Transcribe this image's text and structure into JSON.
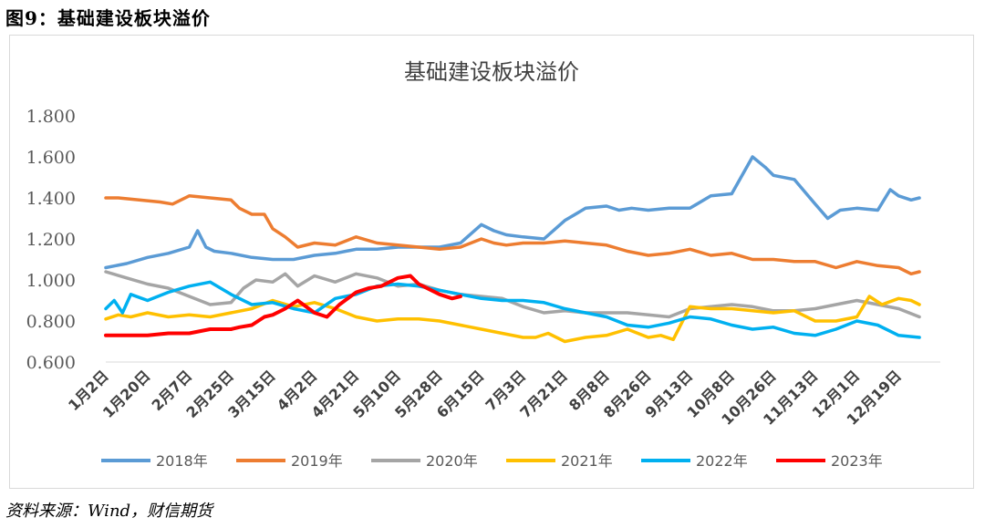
{
  "figure": {
    "caption": "图9：基础建设板块溢价",
    "source": "资料来源：Wind，财信期货"
  },
  "chart_data": {
    "type": "line",
    "title": "基础建设板块溢价",
    "xlabel": "",
    "ylabel": "",
    "ylim": [
      0.6,
      1.8
    ],
    "yticks": [
      "0.600",
      "0.800",
      "1.000",
      "1.200",
      "1.400",
      "1.600",
      "1.800"
    ],
    "ytick_values": [
      0.6,
      0.8,
      1.0,
      1.2,
      1.4,
      1.6,
      1.8
    ],
    "x_categories": [
      "1月2日",
      "1月20日",
      "2月7日",
      "2月25日",
      "3月15日",
      "4月2日",
      "4月21日",
      "5月10日",
      "5月28日",
      "6月15日",
      "7月3日",
      "7月21日",
      "8月8日",
      "8月26日",
      "9月13日",
      "10月8日",
      "10月26日",
      "11月13日",
      "12月1日",
      "12月19日"
    ],
    "x_range": [
      0,
      20
    ],
    "legend_position": "bottom",
    "grid": false,
    "series": [
      {
        "name": "2018年",
        "color": "#5b9bd5",
        "x": [
          0,
          0.5,
          1,
          1.5,
          2,
          2.2,
          2.4,
          2.6,
          3,
          3.5,
          4,
          4.5,
          5,
          5.5,
          6,
          6.5,
          7,
          7.5,
          8,
          8.5,
          9,
          9.3,
          9.6,
          10,
          10.5,
          11,
          11.5,
          12,
          12.3,
          12.6,
          13,
          13.5,
          14,
          14.5,
          15,
          15.5,
          15.8,
          16,
          16.5,
          17,
          17.3,
          17.6,
          18,
          18.5,
          18.8,
          19,
          19.3,
          19.5
        ],
        "values": [
          1.06,
          1.08,
          1.11,
          1.13,
          1.16,
          1.24,
          1.16,
          1.14,
          1.13,
          1.11,
          1.1,
          1.1,
          1.12,
          1.13,
          1.15,
          1.15,
          1.16,
          1.16,
          1.16,
          1.18,
          1.27,
          1.24,
          1.22,
          1.21,
          1.2,
          1.29,
          1.35,
          1.36,
          1.34,
          1.35,
          1.34,
          1.35,
          1.35,
          1.41,
          1.42,
          1.6,
          1.55,
          1.51,
          1.49,
          1.37,
          1.3,
          1.34,
          1.35,
          1.34,
          1.44,
          1.41,
          1.39,
          1.4
        ]
      },
      {
        "name": "2019年",
        "color": "#ed7d31",
        "x": [
          0,
          0.3,
          0.8,
          1.3,
          1.6,
          2,
          2.5,
          3,
          3.2,
          3.5,
          3.8,
          4,
          4.3,
          4.6,
          5,
          5.5,
          6,
          6.5,
          7,
          7.5,
          8,
          8.5,
          9,
          9.3,
          9.6,
          10,
          10.5,
          11,
          11.5,
          12,
          12.5,
          13,
          13.5,
          14,
          14.5,
          15,
          15.5,
          16,
          16.5,
          17,
          17.5,
          18,
          18.5,
          19,
          19.3,
          19.5
        ],
        "values": [
          1.4,
          1.4,
          1.39,
          1.38,
          1.37,
          1.41,
          1.4,
          1.39,
          1.35,
          1.32,
          1.32,
          1.25,
          1.21,
          1.16,
          1.18,
          1.17,
          1.21,
          1.18,
          1.17,
          1.16,
          1.15,
          1.16,
          1.2,
          1.18,
          1.17,
          1.18,
          1.18,
          1.19,
          1.18,
          1.17,
          1.14,
          1.12,
          1.13,
          1.15,
          1.12,
          1.13,
          1.1,
          1.1,
          1.09,
          1.09,
          1.06,
          1.09,
          1.07,
          1.06,
          1.03,
          1.04
        ]
      },
      {
        "name": "2020年",
        "color": "#a5a5a5",
        "x": [
          0,
          0.5,
          1,
          1.5,
          2,
          2.5,
          3,
          3.3,
          3.6,
          4,
          4.3,
          4.6,
          5,
          5.5,
          6,
          6.5,
          7,
          7.5,
          8,
          8.5,
          9,
          9.5,
          10,
          10.5,
          11,
          11.5,
          12,
          12.5,
          13,
          13.5,
          14,
          14.5,
          15,
          15.5,
          16,
          16.5,
          17,
          17.5,
          18,
          18.5,
          19,
          19.5
        ],
        "values": [
          1.04,
          1.01,
          0.98,
          0.96,
          0.92,
          0.88,
          0.89,
          0.96,
          1.0,
          0.99,
          1.03,
          0.97,
          1.02,
          0.99,
          1.03,
          1.01,
          0.97,
          0.98,
          0.95,
          0.93,
          0.92,
          0.91,
          0.87,
          0.84,
          0.85,
          0.84,
          0.84,
          0.84,
          0.83,
          0.82,
          0.86,
          0.87,
          0.88,
          0.87,
          0.85,
          0.85,
          0.86,
          0.88,
          0.9,
          0.88,
          0.86,
          0.82
        ]
      },
      {
        "name": "2021年",
        "color": "#ffc000",
        "x": [
          0,
          0.3,
          0.6,
          1,
          1.5,
          2,
          2.5,
          3,
          3.5,
          4,
          4.5,
          5,
          5.5,
          6,
          6.5,
          7,
          7.5,
          8,
          8.5,
          9,
          9.5,
          10,
          10.3,
          10.6,
          11,
          11.5,
          12,
          12.5,
          13,
          13.3,
          13.6,
          14,
          14.5,
          15,
          15.5,
          16,
          16.5,
          17,
          17.5,
          18,
          18.3,
          18.6,
          19,
          19.3,
          19.5
        ],
        "values": [
          0.81,
          0.83,
          0.82,
          0.84,
          0.82,
          0.83,
          0.82,
          0.84,
          0.86,
          0.9,
          0.87,
          0.89,
          0.86,
          0.82,
          0.8,
          0.81,
          0.81,
          0.8,
          0.78,
          0.76,
          0.74,
          0.72,
          0.72,
          0.74,
          0.7,
          0.72,
          0.73,
          0.76,
          0.72,
          0.73,
          0.71,
          0.87,
          0.86,
          0.86,
          0.85,
          0.84,
          0.85,
          0.8,
          0.8,
          0.82,
          0.92,
          0.88,
          0.91,
          0.9,
          0.88
        ]
      },
      {
        "name": "2022年",
        "color": "#00b0f0",
        "x": [
          0,
          0.2,
          0.4,
          0.6,
          1,
          1.5,
          2,
          2.5,
          3,
          3.5,
          4,
          4.5,
          5,
          5.5,
          6,
          6.5,
          7,
          7.5,
          8,
          8.5,
          9,
          9.5,
          10,
          10.5,
          11,
          11.5,
          12,
          12.5,
          13,
          13.5,
          14,
          14.5,
          15,
          15.5,
          16,
          16.5,
          17,
          17.5,
          18,
          18.5,
          19,
          19.5
        ],
        "values": [
          0.86,
          0.9,
          0.84,
          0.93,
          0.9,
          0.94,
          0.97,
          0.99,
          0.93,
          0.88,
          0.89,
          0.86,
          0.84,
          0.91,
          0.93,
          0.97,
          0.98,
          0.97,
          0.95,
          0.93,
          0.91,
          0.9,
          0.9,
          0.89,
          0.86,
          0.84,
          0.82,
          0.78,
          0.77,
          0.79,
          0.82,
          0.81,
          0.78,
          0.76,
          0.77,
          0.74,
          0.73,
          0.76,
          0.8,
          0.78,
          0.73,
          0.72
        ]
      },
      {
        "name": "2023年",
        "color": "#ff0000",
        "x": [
          0,
          0.5,
          1,
          1.5,
          2,
          2.5,
          3,
          3.2,
          3.5,
          3.8,
          4,
          4.3,
          4.6,
          5,
          5.3,
          5.6,
          6,
          6.3,
          6.6,
          7,
          7.3,
          7.5,
          7.8,
          8,
          8.3,
          8.5
        ],
        "values": [
          0.73,
          0.73,
          0.73,
          0.74,
          0.74,
          0.76,
          0.76,
          0.77,
          0.78,
          0.82,
          0.83,
          0.86,
          0.9,
          0.84,
          0.82,
          0.88,
          0.94,
          0.96,
          0.97,
          1.01,
          1.02,
          0.98,
          0.95,
          0.93,
          0.91,
          0.92
        ]
      }
    ]
  }
}
